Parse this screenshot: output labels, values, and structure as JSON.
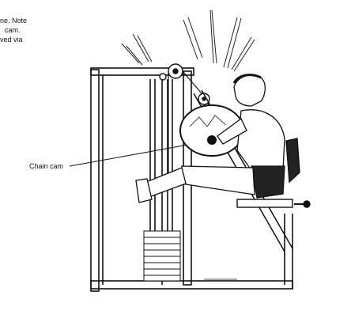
{
  "caption": {
    "lines": [
      "ne. Note",
      "cam.",
      "ved via"
    ]
  },
  "labels": {
    "chain_cam": "Chain cam"
  }
}
